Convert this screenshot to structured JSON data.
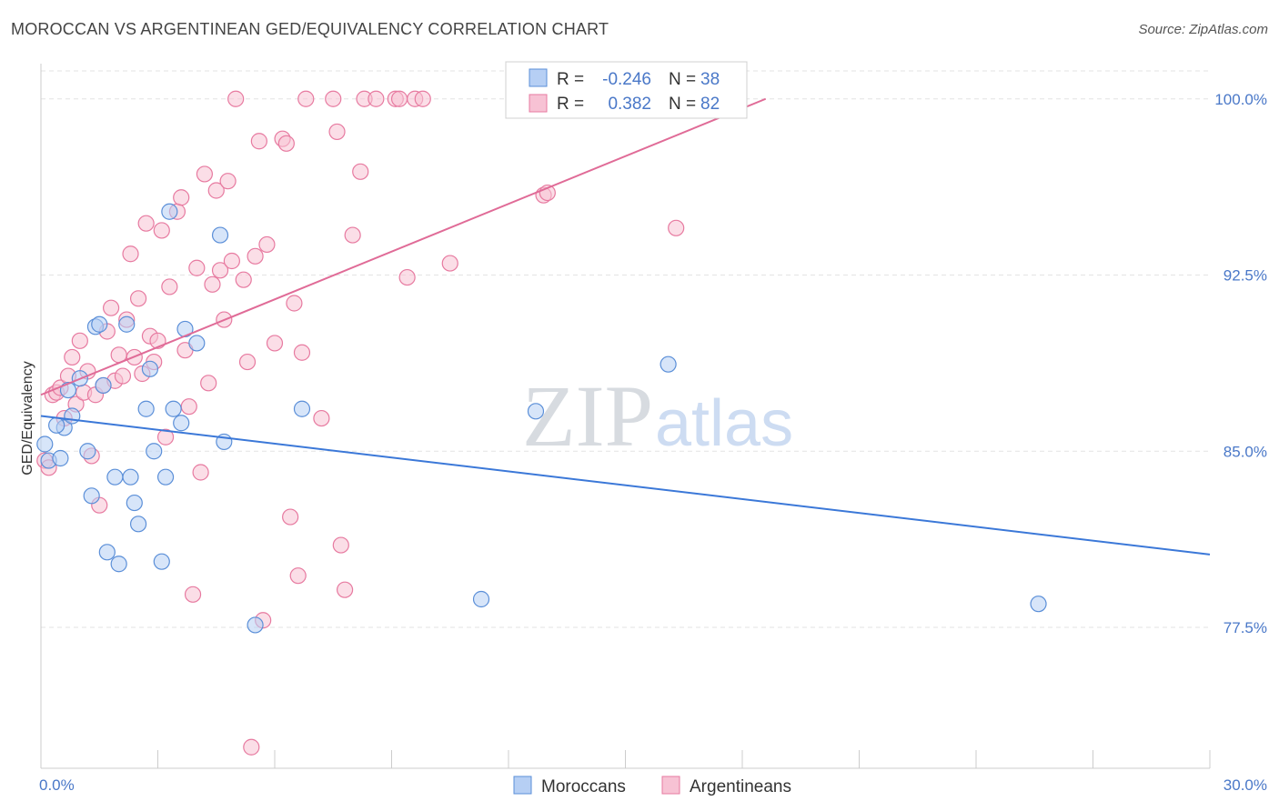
{
  "title": "MOROCCAN VS ARGENTINEAN GED/EQUIVALENCY CORRELATION CHART",
  "source": "Source: ZipAtlas.com",
  "watermark": {
    "zip": "ZIP",
    "atlas": "atlas"
  },
  "colors": {
    "blue": "#5b8fd8",
    "blue_fill": "#b6cff4",
    "pink": "#e77aa0",
    "pink_fill": "#f7c2d4",
    "axis_label": "#4a78c8"
  },
  "legend_box": {
    "rows": [
      {
        "r_label": "R =",
        "r_value": "-0.246",
        "n_label": "N =",
        "n_value": "38"
      },
      {
        "r_label": "R =",
        "r_value": "0.382",
        "n_label": "N =",
        "n_value": "82"
      }
    ]
  },
  "bottom_legend": {
    "moroccans": "Moroccans",
    "argentineans": "Argentineans"
  },
  "chart_data": {
    "type": "scatter",
    "title": "MOROCCAN VS ARGENTINEAN GED/EQUIVALENCY CORRELATION CHART",
    "xlabel": "",
    "ylabel": "GED/Equivalency",
    "xlim": [
      0,
      30
    ],
    "ylim": [
      71.5,
      101.5
    ],
    "x_tick_labels": [
      "0.0%",
      "30.0%"
    ],
    "y_ticks": [
      77.5,
      85.0,
      92.5,
      100.0
    ],
    "y_tick_labels": [
      "77.5%",
      "85.0%",
      "92.5%",
      "100.0%"
    ],
    "grid": true,
    "legend_placement": "top-center",
    "series": [
      {
        "name": "Moroccans",
        "r": -0.246,
        "n": 38,
        "trend": {
          "x": [
            0,
            30
          ],
          "y": [
            86.5,
            80.6
          ]
        },
        "points": [
          [
            0.2,
            84.6
          ],
          [
            0.5,
            84.7
          ],
          [
            0.6,
            86.0
          ],
          [
            0.8,
            86.5
          ],
          [
            0.7,
            87.6
          ],
          [
            1.0,
            88.1
          ],
          [
            1.2,
            85.0
          ],
          [
            1.3,
            83.1
          ],
          [
            1.4,
            90.3
          ],
          [
            1.5,
            90.4
          ],
          [
            1.6,
            87.8
          ],
          [
            1.7,
            80.7
          ],
          [
            1.9,
            83.9
          ],
          [
            2.0,
            80.2
          ],
          [
            2.2,
            90.4
          ],
          [
            2.3,
            83.9
          ],
          [
            2.4,
            82.8
          ],
          [
            2.5,
            81.9
          ],
          [
            2.7,
            86.8
          ],
          [
            2.8,
            88.5
          ],
          [
            2.9,
            85.0
          ],
          [
            3.1,
            80.3
          ],
          [
            3.2,
            83.9
          ],
          [
            3.3,
            95.2
          ],
          [
            3.4,
            86.8
          ],
          [
            3.6,
            86.2
          ],
          [
            3.7,
            90.2
          ],
          [
            4.0,
            89.6
          ],
          [
            4.6,
            94.2
          ],
          [
            4.7,
            85.4
          ],
          [
            5.5,
            77.6
          ],
          [
            6.7,
            86.8
          ],
          [
            11.3,
            78.7
          ],
          [
            12.7,
            86.7
          ],
          [
            16.1,
            88.7
          ],
          [
            25.6,
            78.5
          ],
          [
            0.1,
            85.3
          ],
          [
            0.4,
            86.1
          ]
        ]
      },
      {
        "name": "Argentineans",
        "r": 0.382,
        "n": 82,
        "trend": {
          "x": [
            0,
            18.6
          ],
          "y": [
            87.4,
            100.0
          ]
        },
        "points": [
          [
            0.1,
            84.6
          ],
          [
            0.3,
            87.4
          ],
          [
            0.4,
            87.5
          ],
          [
            0.5,
            87.7
          ],
          [
            0.6,
            86.4
          ],
          [
            0.7,
            88.2
          ],
          [
            0.8,
            89.0
          ],
          [
            0.9,
            87.0
          ],
          [
            1.0,
            89.7
          ],
          [
            1.1,
            87.5
          ],
          [
            1.2,
            88.4
          ],
          [
            1.3,
            84.8
          ],
          [
            1.4,
            87.4
          ],
          [
            1.5,
            82.7
          ],
          [
            1.6,
            87.8
          ],
          [
            1.7,
            90.1
          ],
          [
            1.8,
            91.1
          ],
          [
            1.9,
            88.0
          ],
          [
            2.0,
            89.1
          ],
          [
            2.1,
            88.2
          ],
          [
            2.2,
            90.6
          ],
          [
            2.3,
            93.4
          ],
          [
            2.4,
            89.0
          ],
          [
            2.5,
            91.5
          ],
          [
            2.6,
            88.3
          ],
          [
            2.7,
            94.7
          ],
          [
            2.8,
            89.9
          ],
          [
            2.9,
            88.8
          ],
          [
            3.0,
            89.7
          ],
          [
            3.1,
            94.4
          ],
          [
            3.2,
            85.6
          ],
          [
            3.3,
            92.0
          ],
          [
            3.5,
            95.2
          ],
          [
            3.6,
            95.8
          ],
          [
            3.7,
            89.3
          ],
          [
            3.8,
            86.9
          ],
          [
            3.9,
            78.9
          ],
          [
            4.0,
            92.8
          ],
          [
            4.1,
            84.1
          ],
          [
            4.2,
            96.8
          ],
          [
            4.3,
            87.9
          ],
          [
            4.4,
            92.1
          ],
          [
            4.5,
            96.1
          ],
          [
            4.6,
            92.7
          ],
          [
            4.7,
            90.6
          ],
          [
            4.8,
            96.5
          ],
          [
            4.9,
            93.1
          ],
          [
            5.0,
            100.0
          ],
          [
            5.2,
            92.3
          ],
          [
            5.3,
            88.8
          ],
          [
            5.4,
            72.4
          ],
          [
            5.5,
            93.3
          ],
          [
            5.6,
            98.2
          ],
          [
            5.7,
            77.8
          ],
          [
            5.8,
            93.8
          ],
          [
            6.0,
            89.6
          ],
          [
            6.2,
            98.3
          ],
          [
            6.3,
            98.1
          ],
          [
            6.4,
            82.2
          ],
          [
            6.5,
            91.3
          ],
          [
            6.6,
            79.7
          ],
          [
            6.7,
            89.2
          ],
          [
            6.8,
            100.0
          ],
          [
            7.2,
            86.4
          ],
          [
            7.5,
            100.0
          ],
          [
            7.6,
            98.6
          ],
          [
            7.7,
            81.0
          ],
          [
            7.8,
            79.1
          ],
          [
            8.0,
            94.2
          ],
          [
            8.2,
            96.9
          ],
          [
            8.3,
            100.0
          ],
          [
            8.6,
            100.0
          ],
          [
            9.1,
            100.0
          ],
          [
            9.2,
            100.0
          ],
          [
            9.4,
            92.4
          ],
          [
            9.6,
            100.0
          ],
          [
            9.8,
            100.0
          ],
          [
            10.5,
            93.0
          ],
          [
            12.9,
            95.9
          ],
          [
            13.0,
            96.0
          ],
          [
            16.3,
            94.5
          ],
          [
            0.2,
            84.3
          ]
        ]
      }
    ]
  }
}
